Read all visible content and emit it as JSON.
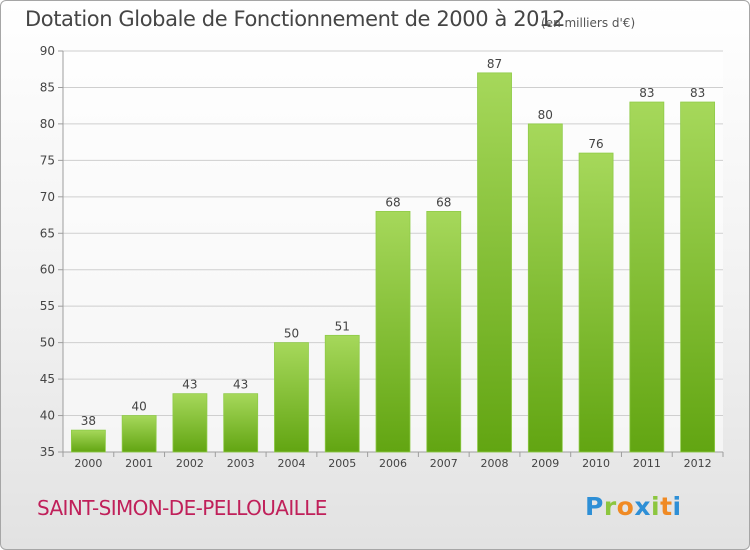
{
  "header": {
    "title": "Dotation Globale de Fonctionnement de 2000 à 2012",
    "unit": "(en milliers d'€)"
  },
  "footer": {
    "commune": "SAINT-SIMON-DE-PELLOUAILLE",
    "logo": {
      "text": "Proxiti",
      "letters": [
        "P",
        "r",
        "o",
        "x",
        "i",
        "t",
        "i"
      ],
      "letter_colors": [
        "#2e8fd6",
        "#8cc63f",
        "#f08a24",
        "#2e8fd6",
        "#8cc63f",
        "#f08a24",
        "#2e8fd6"
      ]
    }
  },
  "colors": {
    "bar_top": "#a6d85b",
    "bar_bottom": "#62a512",
    "grid": "#cfcfcf",
    "axis": "#9e9e9e",
    "text": "#444444",
    "commune": "#c0205a"
  },
  "chart_data": {
    "type": "bar",
    "title": "Dotation Globale de Fonctionnement de 2000 à 2012",
    "subtitle": "(en milliers d'€)",
    "xlabel": "",
    "ylabel": "",
    "categories": [
      "2000",
      "2001",
      "2002",
      "2003",
      "2004",
      "2005",
      "2006",
      "2007",
      "2008",
      "2009",
      "2010",
      "2011",
      "2012"
    ],
    "values": [
      38,
      40,
      43,
      43,
      50,
      51,
      68,
      68,
      87,
      80,
      76,
      83,
      83
    ],
    "ylim": [
      35,
      90
    ],
    "yticks": [
      35,
      40,
      45,
      50,
      55,
      60,
      65,
      70,
      75,
      80,
      85,
      90
    ],
    "grid": true,
    "data_labels": true
  }
}
